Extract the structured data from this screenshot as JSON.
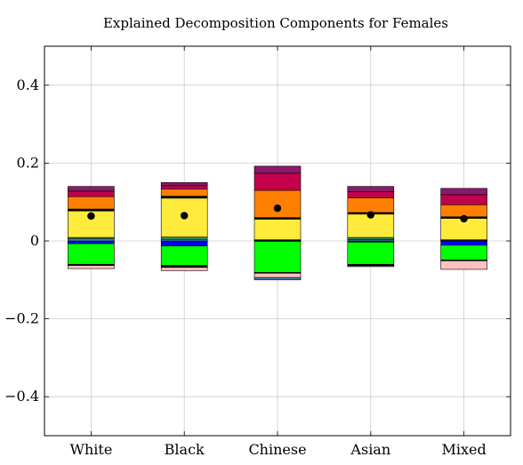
{
  "chart_data": {
    "type": "bar",
    "stacked": true,
    "title": "Explained Decomposition Components for Females",
    "xlabel": "",
    "ylabel": "",
    "categories": [
      "White",
      "Black",
      "Chinese",
      "Asian",
      "Mixed"
    ],
    "ylim": [
      -0.5,
      0.5
    ],
    "yticks": [
      0.4,
      0.2,
      0,
      -0.2,
      -0.4
    ],
    "ytick_labels": [
      "0.4",
      "0.2",
      "0",
      "−0.2",
      "−0.4"
    ],
    "grid": true,
    "legend": "none",
    "positive_segments": [
      {
        "color": "#38b0e0",
        "values": [
          0.005,
          0.004,
          0.002,
          0.003,
          0.002
        ]
      },
      {
        "color": "#2e8b57",
        "values": [
          0.004,
          0.006,
          0.001,
          0.006,
          0.001
        ]
      },
      {
        "color": "#ffeb3b",
        "values": [
          0.068,
          0.1,
          0.053,
          0.06,
          0.055
        ]
      },
      {
        "color": "#000000",
        "values": [
          0.005,
          0.005,
          0.004,
          0.004,
          0.004
        ]
      },
      {
        "color": "#ff8000",
        "values": [
          0.032,
          0.018,
          0.07,
          0.038,
          0.031
        ]
      },
      {
        "color": "#c2004b",
        "values": [
          0.014,
          0.009,
          0.044,
          0.016,
          0.026
        ]
      },
      {
        "color": "#8b1a6b",
        "values": [
          0.012,
          0.008,
          0.018,
          0.013,
          0.016
        ]
      }
    ],
    "negative_segments": [
      {
        "color": "#0000ff",
        "values": [
          -0.007,
          -0.013,
          -0.001,
          -0.003,
          -0.011
        ]
      },
      {
        "color": "#00ff00",
        "values": [
          -0.053,
          -0.05,
          -0.08,
          -0.057,
          -0.038
        ]
      },
      {
        "color": "#000000",
        "values": [
          -0.003,
          -0.005,
          -0.002,
          -0.004,
          -0.002
        ]
      },
      {
        "color": "#ffc0c0",
        "values": [
          -0.008,
          -0.008,
          -0.011,
          -0.002,
          -0.022
        ]
      },
      {
        "color": "#4682b4",
        "values": [
          0,
          0,
          -0.006,
          0,
          0
        ]
      }
    ],
    "net_points": {
      "color": "#000000",
      "values": [
        0.064,
        0.065,
        0.084,
        0.067,
        0.057
      ]
    }
  }
}
